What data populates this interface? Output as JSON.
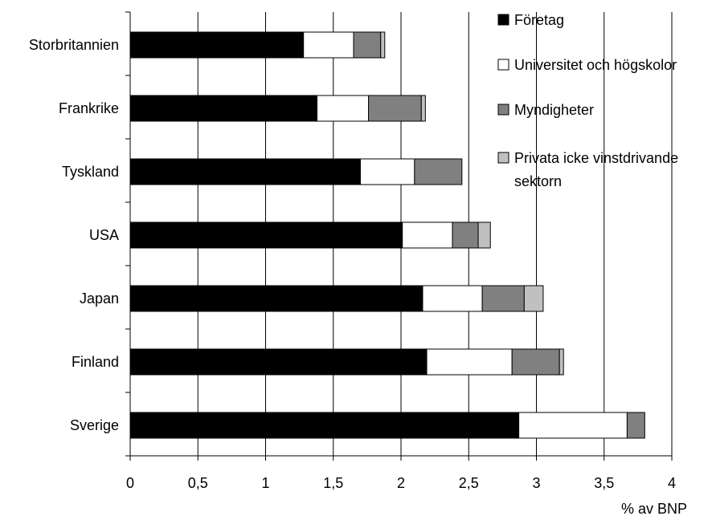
{
  "chart_data": {
    "type": "bar",
    "orientation": "horizontal",
    "stacked": true,
    "categories": [
      "Storbritannien",
      "Frankrike",
      "Tyskland",
      "USA",
      "Japan",
      "Finland",
      "Sverige"
    ],
    "series": [
      {
        "name": "Företag",
        "color": "#000000",
        "values": [
          1.28,
          1.38,
          1.7,
          2.01,
          2.16,
          2.19,
          2.87
        ]
      },
      {
        "name": "Universitet och högskolor",
        "color": "#ffffff",
        "values": [
          0.37,
          0.38,
          0.4,
          0.37,
          0.44,
          0.63,
          0.8
        ]
      },
      {
        "name": "Myndigheter",
        "color": "#808080",
        "values": [
          0.2,
          0.39,
          0.35,
          0.19,
          0.31,
          0.35,
          0.13
        ]
      },
      {
        "name": "Privata icke vinstdrivande sektorn",
        "color": "#c0c0c0",
        "values": [
          0.03,
          0.03,
          0.0,
          0.09,
          0.14,
          0.03,
          0.0
        ]
      }
    ],
    "xlabel": "% av BNP",
    "ylabel": "",
    "xlim": [
      0,
      4
    ],
    "xticks": [
      "0",
      "0,5",
      "1",
      "1,5",
      "2",
      "2,5",
      "3",
      "3,5",
      "4"
    ],
    "grid": "vertical major gridlines",
    "legend_position": "top-right"
  }
}
